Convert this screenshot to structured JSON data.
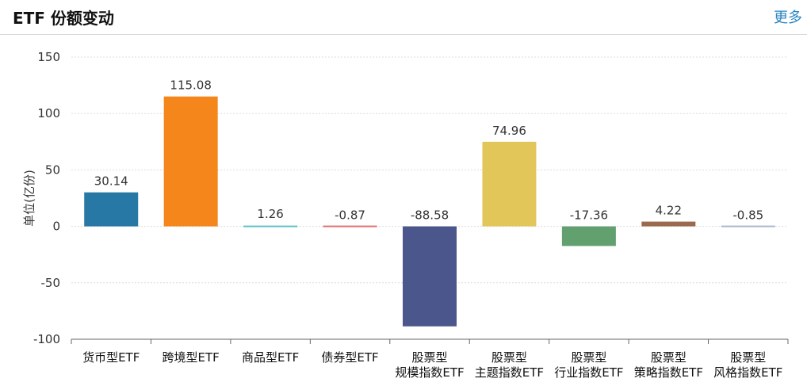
{
  "header": {
    "title": "ETF 份额变动",
    "more_label": "更多"
  },
  "chart_data": {
    "type": "bar",
    "title": "",
    "xlabel": "",
    "ylabel": "单位(亿份)",
    "ylim": [
      -100,
      150
    ],
    "yticks": [
      150,
      100,
      50,
      0,
      -50,
      -100
    ],
    "grid": true,
    "categories": [
      [
        "货币型ETF"
      ],
      [
        "跨境型ETF"
      ],
      [
        "商品型ETF"
      ],
      [
        "债券型ETF"
      ],
      [
        "股票型",
        "规模指数ETF"
      ],
      [
        "股票型",
        "主题指数ETF"
      ],
      [
        "股票型",
        "行业指数ETF"
      ],
      [
        "股票型",
        "策略指数ETF"
      ],
      [
        "股票型",
        "风格指数ETF"
      ]
    ],
    "values": [
      30.14,
      115.08,
      1.26,
      -0.87,
      -88.58,
      74.96,
      -17.36,
      4.22,
      -0.85
    ],
    "labels": [
      "30.14",
      "115.08",
      "1.26",
      "-0.87",
      "-88.58",
      "74.96",
      "-17.36",
      "4.22",
      "-0.85"
    ],
    "colors": [
      "#2878a5",
      "#f5861c",
      "#5cc2c7",
      "#e07070",
      "#4b578c",
      "#e3c65a",
      "#63a070",
      "#9b6a4d",
      "#a8b6cf"
    ]
  }
}
